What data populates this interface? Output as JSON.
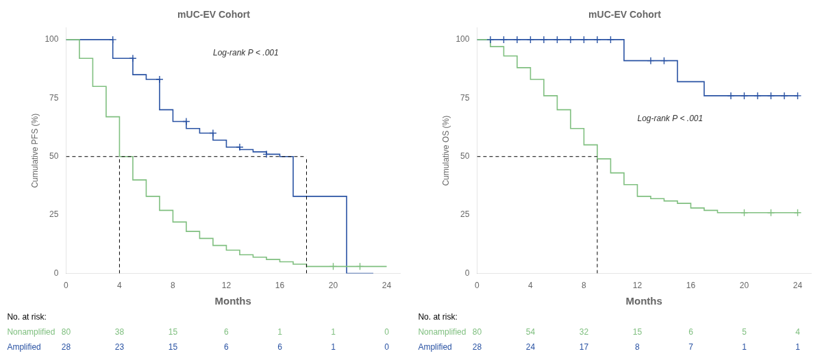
{
  "chart_data": [
    {
      "type": "line",
      "title": "mUC-EV Cohort",
      "x_label": "Months",
      "y_label": "Cumulative PFS (%)",
      "xlim": [
        0,
        25
      ],
      "ylim": [
        0,
        105
      ],
      "xticks": [
        0,
        4,
        8,
        12,
        16,
        20,
        24
      ],
      "yticks": [
        0,
        25,
        50,
        75,
        100
      ],
      "grid": false,
      "series": [
        {
          "name": "Nonamplified",
          "color": "#7fbf7f",
          "x": [
            0,
            1,
            1,
            2,
            2,
            3,
            3,
            4,
            4,
            5,
            5,
            6,
            6,
            7,
            7,
            8,
            8,
            9,
            9,
            10,
            10,
            11,
            11,
            12,
            12,
            13,
            13,
            14,
            14,
            15,
            15,
            16,
            16,
            17,
            17,
            18,
            18,
            19,
            19,
            20,
            20,
            22,
            22,
            24
          ],
          "values": [
            100,
            100,
            92,
            92,
            80,
            80,
            67,
            67,
            50,
            50,
            40,
            40,
            33,
            33,
            27,
            27,
            22,
            22,
            18,
            18,
            15,
            15,
            12,
            12,
            10,
            10,
            8,
            8,
            7,
            7,
            6,
            6,
            5,
            5,
            4,
            4,
            3,
            3,
            3,
            3,
            3,
            3,
            3,
            3
          ],
          "censored": {
            "x": [
              20,
              22
            ],
            "values": [
              3,
              3
            ],
            "marker": "+"
          },
          "at_risk": [
            80,
            38,
            15,
            6,
            1,
            1,
            0
          ]
        },
        {
          "name": "Amplified",
          "color": "#2952a3",
          "x": [
            0,
            3.5,
            3.5,
            5,
            5,
            6,
            6,
            7,
            7,
            8,
            8,
            9,
            9,
            10,
            10,
            11,
            11,
            12,
            12,
            13,
            13,
            14,
            14,
            15,
            15,
            16,
            16,
            17,
            17,
            18,
            18,
            19,
            19,
            20,
            20,
            21,
            21,
            23,
            23
          ],
          "values": [
            100,
            100,
            92,
            92,
            85,
            85,
            83,
            83,
            70,
            70,
            65,
            65,
            62,
            62,
            60,
            60,
            57,
            57,
            54,
            54,
            53,
            53,
            52,
            52,
            51,
            51,
            50,
            50,
            33,
            33,
            33,
            33,
            33,
            33,
            33,
            33,
            0,
            0,
            0
          ],
          "censored": {
            "x": [
              3.5,
              5,
              7,
              9,
              11,
              13,
              15
            ],
            "values": [
              100,
              92,
              83,
              65,
              60,
              54,
              51
            ],
            "marker": "+"
          },
          "at_risk": [
            28,
            23,
            15,
            6,
            6,
            1,
            0
          ]
        }
      ],
      "median_lines": {
        "x": [
          4,
          18
        ],
        "y": 50,
        "color": "black",
        "line_style": "dashed"
      },
      "annotation": "Log-rank P < .001",
      "at_risk_table": {
        "title": "No. at risk:",
        "times": [
          0,
          4,
          8,
          12,
          16,
          20,
          24
        ]
      }
    },
    {
      "type": "line",
      "title": "mUC-EV Cohort",
      "x_label": "Months",
      "y_label": "Cumulative OS (%)",
      "xlim": [
        0,
        25
      ],
      "ylim": [
        0,
        105
      ],
      "xticks": [
        0,
        4,
        8,
        12,
        16,
        20,
        24
      ],
      "yticks": [
        0,
        25,
        50,
        75,
        100
      ],
      "grid": false,
      "series": [
        {
          "name": "Nonamplified",
          "color": "#7fbf7f",
          "x": [
            0,
            1,
            1,
            2,
            2,
            3,
            3,
            4,
            4,
            5,
            5,
            6,
            6,
            7,
            7,
            8,
            8,
            9,
            9,
            10,
            10,
            11,
            11,
            12,
            12,
            13,
            13,
            14,
            14,
            15,
            15,
            16,
            16,
            17,
            17,
            18,
            18,
            19,
            19,
            20,
            20,
            24,
            24
          ],
          "values": [
            100,
            100,
            97,
            97,
            93,
            93,
            88,
            88,
            83,
            83,
            76,
            76,
            70,
            70,
            62,
            62,
            55,
            55,
            49,
            49,
            43,
            43,
            38,
            38,
            33,
            33,
            32,
            32,
            31,
            31,
            30,
            30,
            28,
            28,
            27,
            27,
            26,
            26,
            26,
            26,
            26,
            26,
            26
          ],
          "censored": {
            "x": [
              20,
              22,
              24
            ],
            "values": [
              26,
              26,
              26
            ],
            "marker": "+"
          },
          "at_risk": [
            80,
            54,
            32,
            15,
            6,
            5,
            4
          ]
        },
        {
          "name": "Amplified",
          "color": "#2952a3",
          "x": [
            0,
            11,
            11,
            12,
            12,
            15,
            15,
            16,
            16,
            17,
            17,
            18,
            18,
            24,
            24
          ],
          "values": [
            100,
            100,
            91,
            91,
            91,
            91,
            82,
            82,
            82,
            82,
            76,
            76,
            76,
            76,
            76
          ],
          "censored": {
            "x": [
              1,
              2,
              3,
              4,
              5,
              6,
              7,
              8,
              9,
              10,
              13,
              14,
              19,
              20,
              21,
              22,
              23,
              24
            ],
            "values": [
              100,
              100,
              100,
              100,
              100,
              100,
              100,
              100,
              100,
              100,
              91,
              91,
              76,
              76,
              76,
              76,
              76,
              76
            ],
            "marker": "+"
          },
          "at_risk": [
            28,
            24,
            17,
            8,
            7,
            1,
            1
          ]
        }
      ],
      "median_lines": {
        "x": [
          9
        ],
        "y": 50,
        "color": "black",
        "line_style": "dashed"
      },
      "annotation": "Log-rank P < .001",
      "at_risk_table": {
        "title": "No. at risk:",
        "times": [
          0,
          4,
          8,
          12,
          16,
          20,
          24
        ]
      }
    }
  ]
}
